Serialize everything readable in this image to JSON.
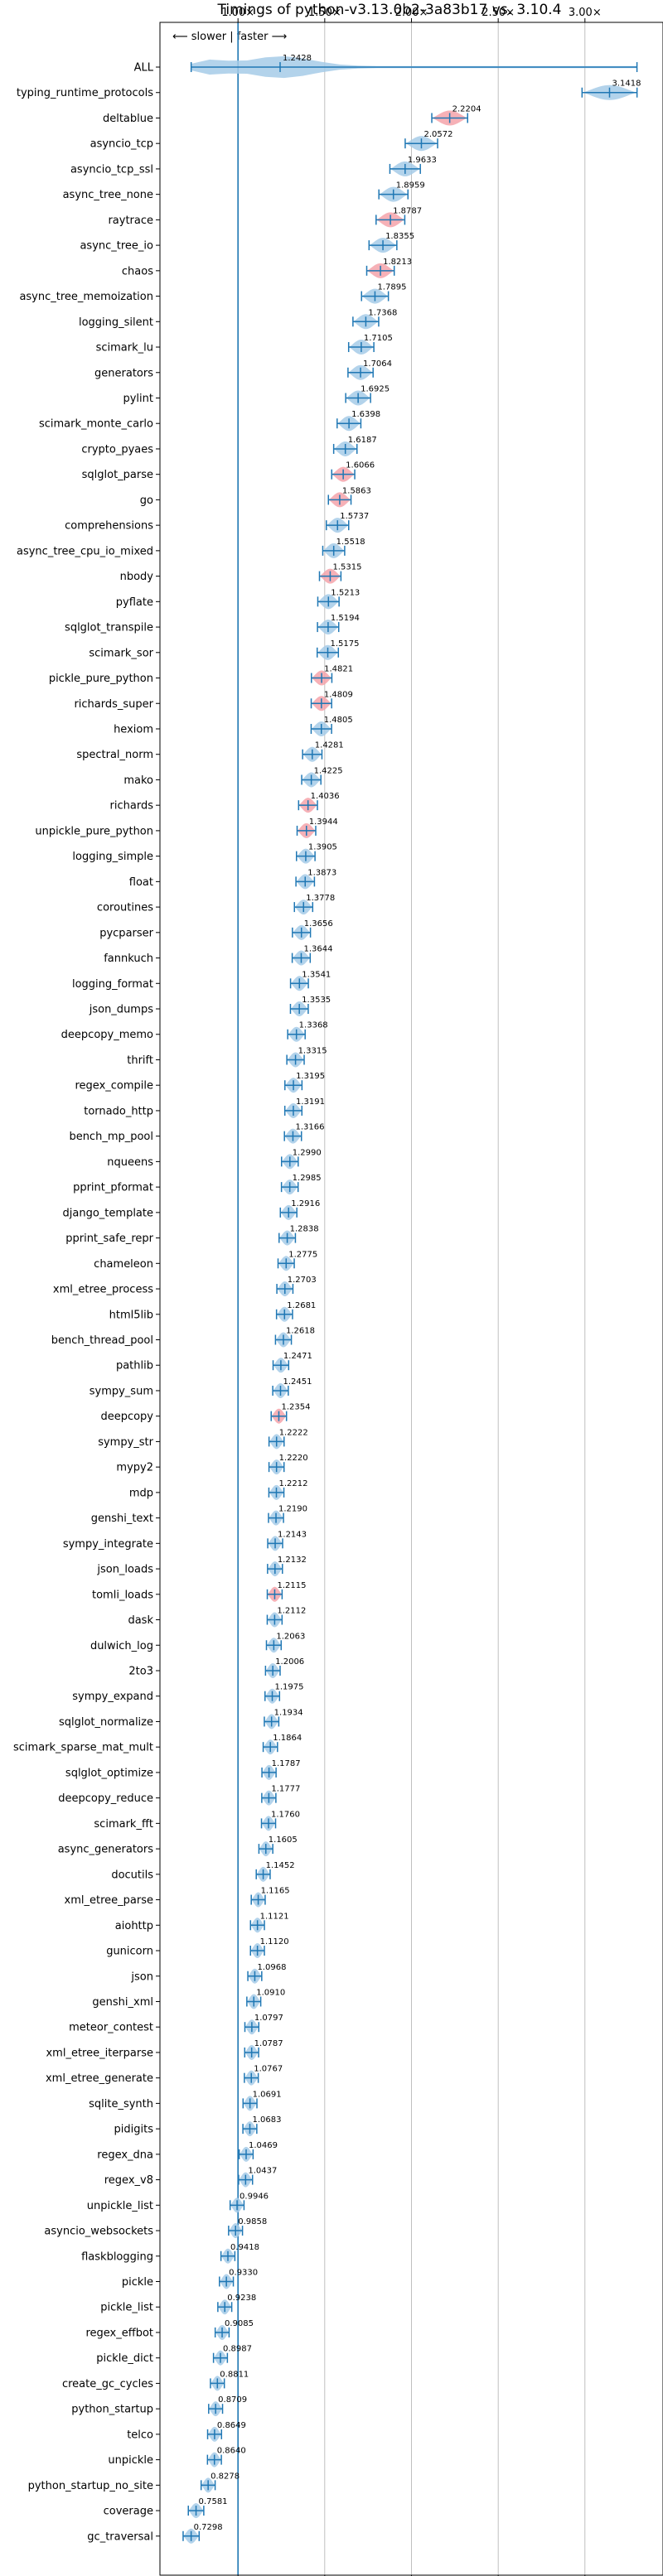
{
  "chart_data": {
    "type": "violin",
    "title": "Timings of python-v3.13.0b2-3a83b17 vs. 3.10.4",
    "annotation": "⟵ slower | faster ⟶",
    "xlim": [
      0.55,
      3.45
    ],
    "xticks": [
      1.0,
      1.5,
      2.0,
      2.5,
      3.0
    ],
    "xtick_labels": [
      "1.00×",
      "1.50×",
      "2.00×",
      "2.50×",
      "3.00×"
    ],
    "reference_line": 1.0,
    "grid": true,
    "colors": {
      "faster": "#1f77b4",
      "violin": "#a6cbe8",
      "slower_violin": "#f4a3aa",
      "frame": "#000000",
      "grid": "#b0b0b0"
    },
    "benchmarks": [
      {
        "name": "ALL",
        "value": 1.2428
      },
      {
        "name": "typing_runtime_protocols",
        "value": 3.1418
      },
      {
        "name": "deltablue",
        "value": 2.2204
      },
      {
        "name": "asyncio_tcp",
        "value": 2.0572
      },
      {
        "name": "asyncio_tcp_ssl",
        "value": 1.9633
      },
      {
        "name": "async_tree_none",
        "value": 1.8959
      },
      {
        "name": "raytrace",
        "value": 1.8787
      },
      {
        "name": "async_tree_io",
        "value": 1.8355
      },
      {
        "name": "chaos",
        "value": 1.8213
      },
      {
        "name": "async_tree_memoization",
        "value": 1.7895
      },
      {
        "name": "logging_silent",
        "value": 1.7368
      },
      {
        "name": "scimark_lu",
        "value": 1.7105
      },
      {
        "name": "generators",
        "value": 1.7064
      },
      {
        "name": "pylint",
        "value": 1.6925
      },
      {
        "name": "scimark_monte_carlo",
        "value": 1.6398
      },
      {
        "name": "crypto_pyaes",
        "value": 1.6187
      },
      {
        "name": "sqlglot_parse",
        "value": 1.6066
      },
      {
        "name": "go",
        "value": 1.5863
      },
      {
        "name": "comprehensions",
        "value": 1.5737
      },
      {
        "name": "async_tree_cpu_io_mixed",
        "value": 1.5518
      },
      {
        "name": "nbody",
        "value": 1.5315
      },
      {
        "name": "pyflate",
        "value": 1.5213
      },
      {
        "name": "sqlglot_transpile",
        "value": 1.5194
      },
      {
        "name": "scimark_sor",
        "value": 1.5175
      },
      {
        "name": "pickle_pure_python",
        "value": 1.4821
      },
      {
        "name": "richards_super",
        "value": 1.4809
      },
      {
        "name": "hexiom",
        "value": 1.4805
      },
      {
        "name": "spectral_norm",
        "value": 1.4281
      },
      {
        "name": "mako",
        "value": 1.4225
      },
      {
        "name": "richards",
        "value": 1.4036
      },
      {
        "name": "unpickle_pure_python",
        "value": 1.3944
      },
      {
        "name": "logging_simple",
        "value": 1.3905
      },
      {
        "name": "float",
        "value": 1.3873
      },
      {
        "name": "coroutines",
        "value": 1.3778
      },
      {
        "name": "pycparser",
        "value": 1.3656
      },
      {
        "name": "fannkuch",
        "value": 1.3644
      },
      {
        "name": "logging_format",
        "value": 1.3541
      },
      {
        "name": "json_dumps",
        "value": 1.3535
      },
      {
        "name": "deepcopy_memo",
        "value": 1.3368
      },
      {
        "name": "thrift",
        "value": 1.3315
      },
      {
        "name": "regex_compile",
        "value": 1.3195
      },
      {
        "name": "tornado_http",
        "value": 1.3191
      },
      {
        "name": "bench_mp_pool",
        "value": 1.3166
      },
      {
        "name": "nqueens",
        "value": 1.299
      },
      {
        "name": "pprint_pformat",
        "value": 1.2985
      },
      {
        "name": "django_template",
        "value": 1.2916
      },
      {
        "name": "pprint_safe_repr",
        "value": 1.2838
      },
      {
        "name": "chameleon",
        "value": 1.2775
      },
      {
        "name": "xml_etree_process",
        "value": 1.2703
      },
      {
        "name": "html5lib",
        "value": 1.2681
      },
      {
        "name": "bench_thread_pool",
        "value": 1.2618
      },
      {
        "name": "pathlib",
        "value": 1.2471
      },
      {
        "name": "sympy_sum",
        "value": 1.2451
      },
      {
        "name": "deepcopy",
        "value": 1.2354
      },
      {
        "name": "sympy_str",
        "value": 1.2222
      },
      {
        "name": "mypy2",
        "value": 1.222
      },
      {
        "name": "mdp",
        "value": 1.2212
      },
      {
        "name": "genshi_text",
        "value": 1.219
      },
      {
        "name": "sympy_integrate",
        "value": 1.2143
      },
      {
        "name": "json_loads",
        "value": 1.2132
      },
      {
        "name": "tomli_loads",
        "value": 1.2115
      },
      {
        "name": "dask",
        "value": 1.2112
      },
      {
        "name": "dulwich_log",
        "value": 1.2063
      },
      {
        "name": "2to3",
        "value": 1.2006
      },
      {
        "name": "sympy_expand",
        "value": 1.1975
      },
      {
        "name": "sqlglot_normalize",
        "value": 1.1934
      },
      {
        "name": "scimark_sparse_mat_mult",
        "value": 1.1864
      },
      {
        "name": "sqlglot_optimize",
        "value": 1.1787
      },
      {
        "name": "deepcopy_reduce",
        "value": 1.1777
      },
      {
        "name": "scimark_fft",
        "value": 1.176
      },
      {
        "name": "async_generators",
        "value": 1.1605
      },
      {
        "name": "docutils",
        "value": 1.1452
      },
      {
        "name": "xml_etree_parse",
        "value": 1.1165
      },
      {
        "name": "aiohttp",
        "value": 1.1121
      },
      {
        "name": "gunicorn",
        "value": 1.112
      },
      {
        "name": "json",
        "value": 1.0968
      },
      {
        "name": "genshi_xml",
        "value": 1.091
      },
      {
        "name": "meteor_contest",
        "value": 1.0797
      },
      {
        "name": "xml_etree_iterparse",
        "value": 1.0787
      },
      {
        "name": "xml_etree_generate",
        "value": 1.0767
      },
      {
        "name": "sqlite_synth",
        "value": 1.0691
      },
      {
        "name": "pidigits",
        "value": 1.0683
      },
      {
        "name": "regex_dna",
        "value": 1.0469
      },
      {
        "name": "regex_v8",
        "value": 1.0437
      },
      {
        "name": "unpickle_list",
        "value": 0.9946
      },
      {
        "name": "asyncio_websockets",
        "value": 0.9858
      },
      {
        "name": "flaskblogging",
        "value": 0.9418
      },
      {
        "name": "pickle",
        "value": 0.933
      },
      {
        "name": "pickle_list",
        "value": 0.9238
      },
      {
        "name": "regex_effbot",
        "value": 0.9085
      },
      {
        "name": "pickle_dict",
        "value": 0.8987
      },
      {
        "name": "create_gc_cycles",
        "value": 0.8811
      },
      {
        "name": "python_startup",
        "value": 0.8709
      },
      {
        "name": "telco",
        "value": 0.8649
      },
      {
        "name": "unpickle",
        "value": 0.864
      },
      {
        "name": "python_startup_no_site",
        "value": 0.8278
      },
      {
        "name": "coverage",
        "value": 0.7581
      },
      {
        "name": "gc_traversal",
        "value": 0.7298
      }
    ]
  }
}
